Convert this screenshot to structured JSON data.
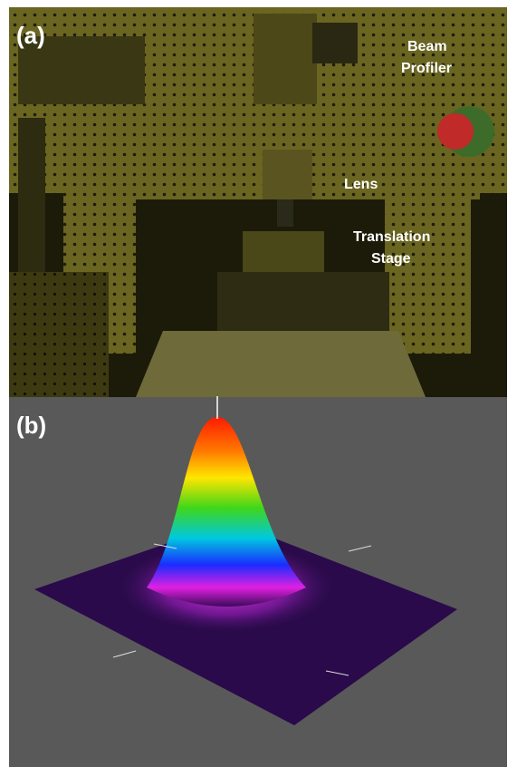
{
  "panels": [
    {
      "label": "(a)",
      "annotations": [
        {
          "lines": [
            "Beam",
            "Profiler"
          ]
        },
        {
          "lines": [
            "Lens"
          ]
        },
        {
          "lines": [
            "Translation",
            "Stage"
          ]
        }
      ]
    },
    {
      "label": "(b)"
    }
  ]
}
